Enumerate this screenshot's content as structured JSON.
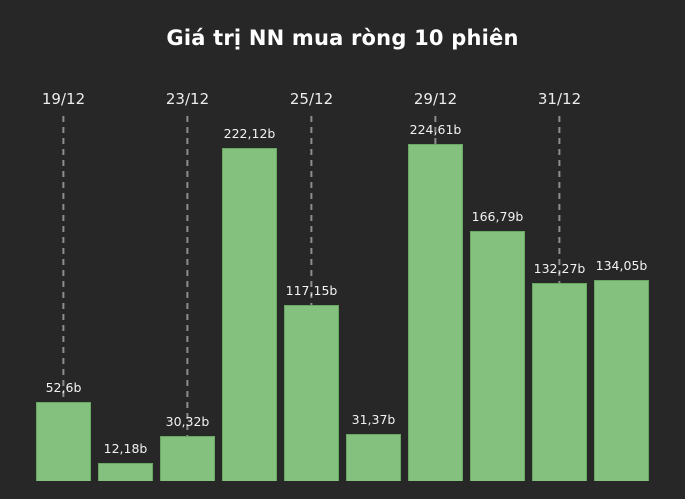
{
  "chart_data": {
    "type": "bar",
    "title": "Giá trị NN mua ròng 10 phiên",
    "values": [
      52.6,
      12.18,
      30.32,
      222.12,
      117.15,
      31.37,
      224.61,
      166.79,
      132.27,
      134.05
    ],
    "value_labels": [
      "52,6b",
      "12,18b",
      "30,32b",
      "222,12b",
      "117,15b",
      "31,37b",
      "224,61b",
      "166,79b",
      "132,27b",
      "134,05b"
    ],
    "x_ticks": [
      {
        "label": "19/12",
        "bar_index": 0
      },
      {
        "label": "23/12",
        "bar_index": 2
      },
      {
        "label": "25/12",
        "bar_index": 4
      },
      {
        "label": "29/12",
        "bar_index": 6
      },
      {
        "label": "31/12",
        "bar_index": 8
      }
    ],
    "ylim": [
      0,
      230
    ],
    "legend": false,
    "grid": "dashed-vertical-guides-at-labeled-dates"
  },
  "colors": {
    "background": "#272727",
    "bar_fill": "#84c17e",
    "bar_border": "#69a863",
    "text": "#ffffff",
    "guide_line": "#8d8d8d"
  }
}
